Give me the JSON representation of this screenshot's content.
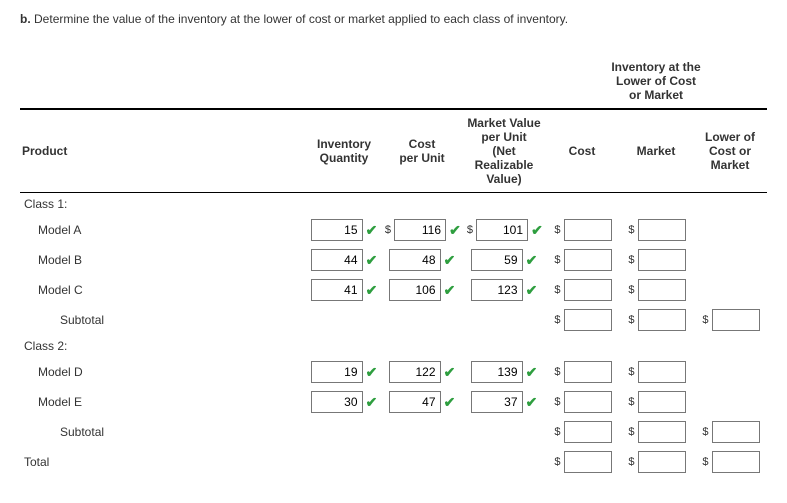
{
  "question_prefix": "b.",
  "question_text": "Determine the value of the inventory at the lower of cost or market applied to each class of inventory.",
  "header_top": "Inventory at the\nLower of Cost\nor Market",
  "columns": {
    "product": "Product",
    "qty": "Inventory\nQuantity",
    "cost_unit": "Cost\nper Unit",
    "mv_unit": "Market Value\nper Unit\n(Net Realizable Value)",
    "cost": "Cost",
    "market": "Market",
    "lcm": "Lower of Cost or Market"
  },
  "class1_label": "Class 1:",
  "class2_label": "Class 2:",
  "subtotal_label": "Subtotal",
  "total_label": "Total",
  "rows_class1": [
    {
      "name": "Model A",
      "qty": "15",
      "cost_unit": "116",
      "mv_unit": "101",
      "show_dollar": true
    },
    {
      "name": "Model B",
      "qty": "44",
      "cost_unit": "48",
      "mv_unit": "59",
      "show_dollar": false
    },
    {
      "name": "Model C",
      "qty": "41",
      "cost_unit": "106",
      "mv_unit": "123",
      "show_dollar": false
    }
  ],
  "rows_class2": [
    {
      "name": "Model D",
      "qty": "19",
      "cost_unit": "122",
      "mv_unit": "139",
      "show_dollar": false
    },
    {
      "name": "Model E",
      "qty": "30",
      "cost_unit": "47",
      "mv_unit": "37",
      "show_dollar": false
    }
  ],
  "colors": {
    "check": "#2e9e3f",
    "border": "#777777",
    "text": "#333333",
    "rule": "#000000"
  }
}
